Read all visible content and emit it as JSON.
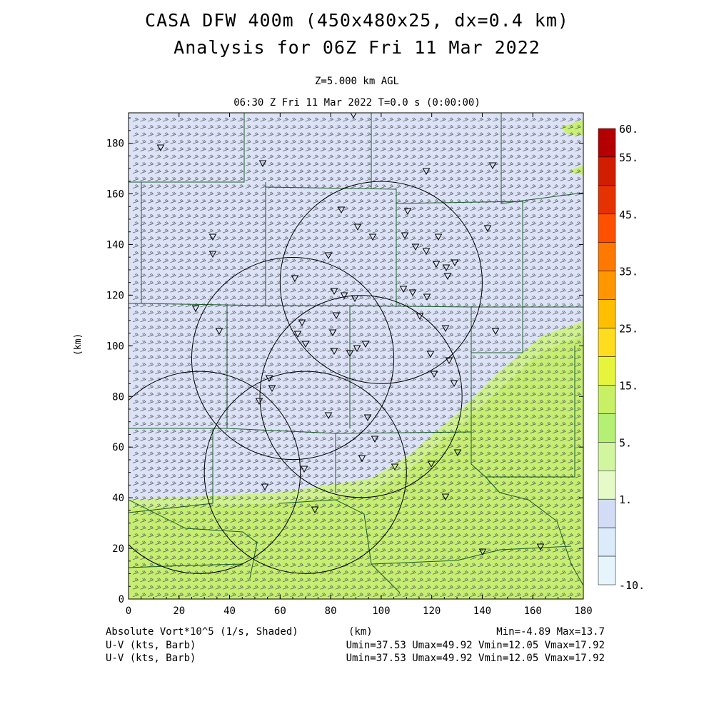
{
  "title": {
    "line1": "CASA DFW 400m (450x480x25, dx=0.4 km)",
    "line2": "Analysis for 06Z Fri 11 Mar 2022",
    "level": "Z=5.000 km AGL",
    "time": "06:30 Z Fri 11 Mar 2022    T=0.0 s (0:00:00)"
  },
  "axes": {
    "xlabel": "(km)",
    "ylabel": "(km)",
    "x_ticks": [
      "0",
      "20",
      "40",
      "60",
      "80",
      "100",
      "120",
      "140",
      "160",
      "180"
    ],
    "y_ticks": [
      "0",
      "20",
      "40",
      "60",
      "80",
      "100",
      "120",
      "140",
      "160",
      "180"
    ],
    "x_range": [
      0,
      180
    ],
    "y_range": [
      0,
      192
    ]
  },
  "footer": {
    "field1": "Absolute Vort*10^5 (1/s, Shaded)",
    "minmax": "Min=-4.89 Max=13.7",
    "field2": "U-V (kts, Barb)",
    "stats2": "Umin=37.53 Umax=49.92 Vmin=12.05 Vmax=17.92",
    "field3": "U-V (kts, Barb)",
    "stats3": "Umin=37.53 Umax=49.92 Vmin=12.05 Vmax=17.92"
  },
  "colorbar": {
    "labels": [
      "60.",
      "55.",
      "45.",
      "35.",
      "25.",
      "15.",
      "5.",
      "1.",
      "-10."
    ],
    "colors": [
      "#b40000",
      "#d21e00",
      "#e63200",
      "#ff5000",
      "#ff7800",
      "#ff9600",
      "#ffbe00",
      "#ffdc1e",
      "#e6f53c",
      "#c8f064",
      "#b4f073",
      "#d2f5a0",
      "#e6fac8",
      "#d2dcf5",
      "#dcebfa",
      "#e6f5fc"
    ]
  },
  "radars": [
    {
      "x": 28,
      "y": 50
    },
    {
      "x": 70,
      "y": 50
    },
    {
      "x": 65,
      "y": 95
    },
    {
      "x": 92,
      "y": 80
    },
    {
      "x": 100,
      "y": 125
    }
  ],
  "chart_data": {
    "type": "heatmap",
    "field": "Absolute Vort*10^5 (1/s, Shaded)",
    "value_range": {
      "min": -4.89,
      "max": 13.7
    },
    "regions": [
      {
        "area": "south (y < ~40 km, east side up to ~100 km)",
        "class": "5 to 15"
      },
      {
        "area": "north and central",
        "class": "1 to 5 / -10 to 1"
      }
    ]
  }
}
